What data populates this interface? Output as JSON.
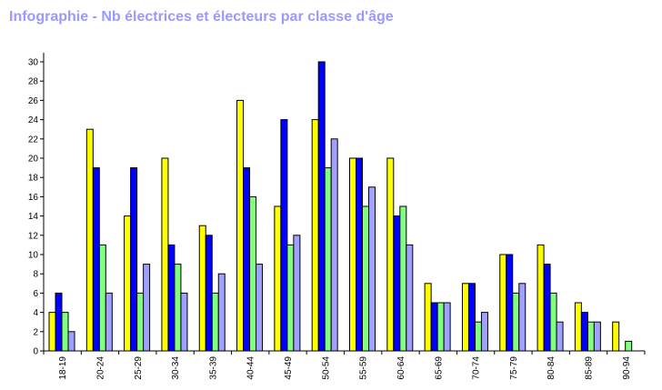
{
  "chart_data": {
    "type": "bar",
    "title": "Infographie - Nb électrices et électeurs par classe d'âge",
    "xlabel": "",
    "ylabel": "",
    "ylim": [
      0,
      30
    ],
    "yticks": [
      0,
      2,
      4,
      6,
      8,
      10,
      12,
      14,
      16,
      18,
      20,
      22,
      24,
      26,
      28,
      30
    ],
    "grid": false,
    "legend": "none",
    "categories": [
      "18-19",
      "20-24",
      "25-29",
      "30-34",
      "35-39",
      "40-44",
      "45-49",
      "50-54",
      "55-59",
      "60-64",
      "65-69",
      "70-74",
      "75-79",
      "80-84",
      "85-89",
      "90-94"
    ],
    "series": [
      {
        "color": "#ffff00",
        "values": [
          4,
          23,
          14,
          20,
          13,
          26,
          15,
          24,
          20,
          20,
          7,
          7,
          10,
          11,
          5,
          3
        ]
      },
      {
        "color": "#0000ff",
        "values": [
          6,
          19,
          19,
          11,
          12,
          19,
          24,
          30,
          20,
          14,
          5,
          7,
          10,
          9,
          4,
          0
        ]
      },
      {
        "color": "#80ff80",
        "values": [
          4,
          11,
          6,
          9,
          6,
          16,
          11,
          19,
          15,
          15,
          5,
          3,
          6,
          6,
          3,
          1
        ]
      },
      {
        "color": "#a0a0ff",
        "values": [
          2,
          6,
          9,
          6,
          8,
          9,
          12,
          22,
          17,
          11,
          5,
          4,
          7,
          3,
          3,
          0
        ]
      }
    ]
  }
}
